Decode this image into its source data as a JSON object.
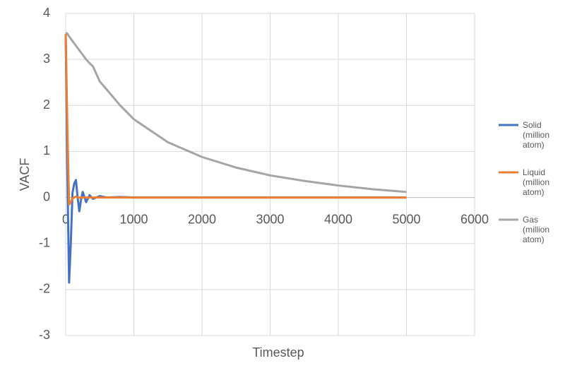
{
  "chart_data": {
    "type": "line",
    "x_label": "Timestep",
    "y_label": "VACF",
    "x": [
      0,
      25,
      50,
      75,
      100,
      125,
      150,
      175,
      200,
      225,
      250,
      300,
      350,
      400,
      500,
      600,
      800,
      1000,
      1500,
      2000,
      2500,
      3000,
      3500,
      4000,
      4500,
      5000
    ],
    "series": [
      {
        "name": "Solid (million atom)",
        "color": "#4472c4",
        "values": [
          3.55,
          0.5,
          -1.85,
          -1.0,
          0.1,
          0.3,
          0.38,
          0.0,
          -0.3,
          -0.05,
          0.12,
          -0.1,
          0.05,
          -0.03,
          0.03,
          0,
          0.01,
          0,
          0,
          0,
          0,
          0,
          0,
          0,
          0,
          0
        ]
      },
      {
        "name": "Liquid (million atom)",
        "color": "#ed7d31",
        "values": [
          3.55,
          1.5,
          -0.15,
          -0.1,
          -0.02,
          0,
          0.02,
          0,
          0,
          0,
          0,
          0,
          0,
          0,
          0,
          0,
          0,
          0,
          0,
          0,
          0,
          0,
          0,
          0,
          0,
          0
        ]
      },
      {
        "name": "Gas (million atom)",
        "color": "#a5a5a5",
        "values": [
          3.58,
          3.56,
          3.5,
          3.45,
          3.4,
          3.35,
          3.3,
          3.25,
          3.2,
          3.15,
          3.1,
          3.0,
          2.92,
          2.85,
          2.52,
          2.35,
          2.0,
          1.7,
          1.2,
          0.88,
          0.65,
          0.48,
          0.36,
          0.26,
          0.18,
          0.12
        ]
      }
    ],
    "xlim": [
      0,
      6000
    ],
    "xticks": [
      0,
      1000,
      2000,
      3000,
      4000,
      5000,
      6000
    ],
    "ylim": [
      -3,
      4
    ],
    "yticks": [
      -3,
      -2,
      -1,
      0,
      1,
      2,
      3,
      4
    ],
    "grid": true,
    "legend": "right"
  }
}
